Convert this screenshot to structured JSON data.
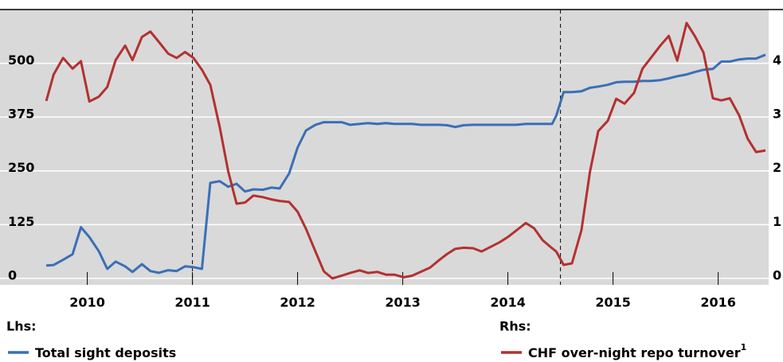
{
  "chart_data": {
    "type": "line",
    "x": [
      2010.11,
      2010.18,
      2010.27,
      2010.36,
      2010.44,
      2010.52,
      2010.61,
      2010.69,
      2010.77,
      2010.86,
      2010.93,
      2011.02,
      2011.1,
      2011.18,
      2011.27,
      2011.35,
      2011.43,
      2011.51,
      2011.59,
      2011.67,
      2011.76,
      2011.84,
      2011.92,
      2012.0,
      2012.08,
      2012.17,
      2012.25,
      2012.33,
      2012.42,
      2012.5,
      2012.58,
      2012.67,
      2012.75,
      2012.83,
      2012.92,
      2013.0,
      2013.09,
      2013.17,
      2013.26,
      2013.34,
      2013.42,
      2013.51,
      2013.59,
      2013.67,
      2013.76,
      2013.84,
      2013.92,
      2014.0,
      2014.08,
      2014.17,
      2014.25,
      2014.33,
      2014.42,
      2014.5,
      2014.58,
      2014.67,
      2014.75,
      2014.83,
      2014.92,
      2014.96,
      2015.03,
      2015.11,
      2015.2,
      2015.28,
      2015.36,
      2015.45,
      2015.53,
      2015.61,
      2015.7,
      2015.78,
      2015.86,
      2015.95,
      2016.03,
      2016.11,
      2016.2,
      2016.28,
      2016.36,
      2016.45,
      2016.53,
      2016.61,
      2016.7,
      2016.78,
      2016.86,
      2016.95
    ],
    "series": [
      {
        "name": "Total sight deposits",
        "group": "Lhs:",
        "color": "#3a6fb5",
        "values": [
          30,
          31,
          43,
          56,
          119,
          96,
          63,
          22,
          39,
          28,
          15,
          33,
          17,
          13,
          19,
          17,
          28,
          26,
          22,
          222,
          226,
          213,
          220,
          202,
          207,
          206,
          211,
          209,
          244,
          304,
          344,
          357,
          363,
          363,
          363,
          357,
          359,
          361,
          359,
          361,
          359,
          359,
          359,
          357,
          357,
          357,
          356,
          352,
          356,
          357,
          357,
          357,
          357,
          357,
          357,
          359,
          359,
          359,
          359,
          378,
          433,
          433,
          435,
          443,
          446,
          450,
          456,
          457,
          457,
          459,
          459,
          461,
          465,
          470,
          474,
          480,
          485,
          487,
          504,
          504,
          509,
          511,
          511,
          520
        ]
      },
      {
        "name": "CHF over-night repo turnover",
        "note": "1",
        "group": "Rhs:",
        "color": "#b3312f",
        "axis": "y2",
        "values": [
          3.3,
          3.79,
          4.1,
          3.9,
          4.04,
          3.29,
          3.38,
          3.56,
          4.06,
          4.33,
          4.06,
          4.49,
          4.59,
          4.4,
          4.18,
          4.1,
          4.21,
          4.1,
          3.88,
          3.6,
          2.81,
          1.99,
          1.39,
          1.41,
          1.54,
          1.51,
          1.47,
          1.44,
          1.42,
          1.24,
          0.92,
          0.5,
          0.13,
          0.0,
          0.05,
          0.1,
          0.15,
          0.1,
          0.12,
          0.07,
          0.07,
          0.02,
          0.05,
          0.12,
          0.2,
          0.33,
          0.45,
          0.55,
          0.57,
          0.56,
          0.5,
          0.58,
          0.67,
          0.77,
          0.89,
          1.03,
          0.93,
          0.71,
          0.56,
          0.5,
          0.25,
          0.28,
          0.9,
          1.98,
          2.74,
          2.93,
          3.34,
          3.25,
          3.45,
          3.9,
          4.1,
          4.33,
          4.51,
          4.05,
          4.75,
          4.5,
          4.2,
          3.35,
          3.31,
          3.35,
          3.03,
          2.6,
          2.35,
          2.38
        ]
      }
    ],
    "xlim": [
      2009.67,
      2016.98
    ],
    "xticks": [
      {
        "value": 2010.5,
        "label": "2010"
      },
      {
        "value": 2011.5,
        "label": "2011"
      },
      {
        "value": 2012.5,
        "label": "2012"
      },
      {
        "value": 2013.5,
        "label": "2013"
      },
      {
        "value": 2014.5,
        "label": "2014"
      },
      {
        "value": 2015.5,
        "label": "2015"
      },
      {
        "value": 2016.5,
        "label": "2016"
      }
    ],
    "ylim": [
      -15,
      625
    ],
    "yticks": [
      0,
      125,
      250,
      375,
      500
    ],
    "y2lim": [
      -0.12,
      5
    ],
    "y2ticks": [
      0,
      1,
      2,
      3,
      4
    ],
    "vlines": [
      2011.5,
      2015.0
    ],
    "grid": true
  }
}
